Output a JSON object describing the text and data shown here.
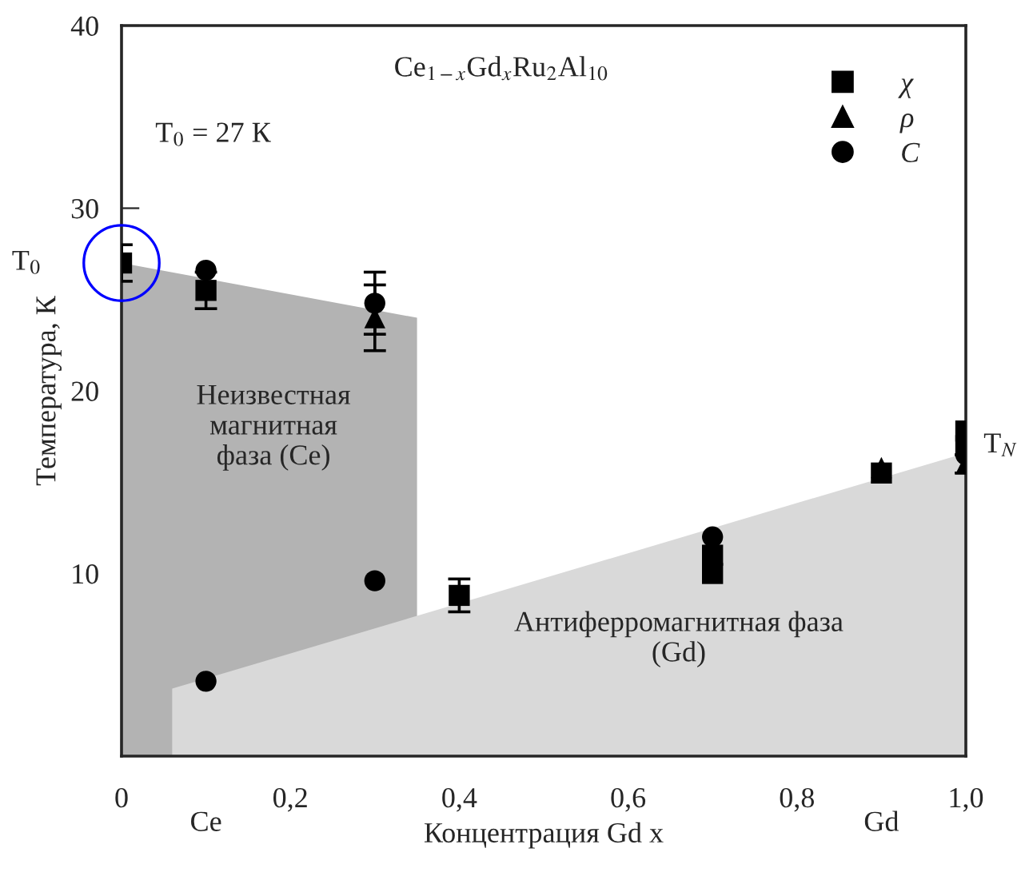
{
  "chart_data": {
    "type": "scatter",
    "xlabel": "Концентрация Gd x",
    "ylabel": "Температура, К",
    "xlim": [
      0,
      1.0
    ],
    "ylim": [
      0,
      40
    ],
    "xticks": [
      {
        "value": 0,
        "label": "0"
      },
      {
        "value": 0.2,
        "label": "0,2"
      },
      {
        "value": 0.4,
        "label": "0,4"
      },
      {
        "value": 0.6,
        "label": "0,6"
      },
      {
        "value": 0.8,
        "label": "0,8"
      },
      {
        "value": 1.0,
        "label": "1,0"
      }
    ],
    "yticks": [
      10,
      20,
      30,
      40
    ],
    "grid": false,
    "legend": "top right",
    "series": [
      {
        "type": "area",
        "color": "#b3b3b3",
        "x": [
          0,
          0.35
        ],
        "values": [
          27,
          24
        ]
      },
      {
        "type": "area",
        "color": "#d9d9d9",
        "x": [
          0.06,
          1.0
        ],
        "values": [
          3.7,
          16.6
        ]
      },
      {
        "name": "χ",
        "color": "#000000",
        "marker": "square",
        "x": [
          0,
          0.1,
          0.4,
          0.7,
          0.7,
          0.9,
          1.0,
          1.0
        ],
        "values": [
          27,
          25.5,
          8.8,
          10,
          11,
          15.5,
          17.8,
          17
        ],
        "errors": [
          1,
          1,
          0.9,
          null,
          null,
          null,
          null,
          null
        ]
      },
      {
        "name": "ρ",
        "color": "#000000",
        "marker": "triangle",
        "x": [
          0.3,
          0.9,
          1.0
        ],
        "values": [
          24,
          15.8,
          16
        ],
        "errors": [
          1.8,
          null,
          0.5
        ]
      },
      {
        "name": "C",
        "color": "#000000",
        "marker": "circle",
        "x": [
          0.1,
          0.1,
          0.3,
          0.3,
          0.7,
          1.0
        ],
        "values": [
          26.6,
          4.1,
          24.8,
          9.6,
          12,
          16.5
        ],
        "errors": [
          null,
          null,
          1.7,
          null,
          null,
          null
        ]
      }
    ],
    "annotations": [
      "Ce$_{1−x}$Gd$_{x}$Ru$_{2}$Al$_{10}$",
      "T$_{0}$ = 27 К",
      "Неизвестная\nмагнитная\nфаза (Ce)",
      "Антиферромагнитная фаза\n(Gd)",
      "Ce",
      "Gd",
      {
        "text": "T$_{0}$",
        "x": 0,
        "y": 27
      },
      {
        "text": "T$_{N}$",
        "x": 1.0,
        "y": 17
      }
    ]
  }
}
